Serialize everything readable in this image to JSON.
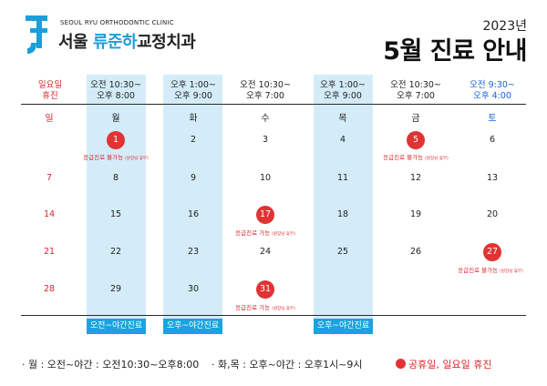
{
  "header": {
    "clinic_en": "SEOUL RYU ORTHODONTIC CLINIC",
    "clinic_ko_pre": "서울 ",
    "clinic_ko_highlight": "류준하",
    "clinic_ko_post": "교정치과",
    "year": "2023년",
    "title": "5월 진료 안내"
  },
  "hours": [
    {
      "line1": "일요일",
      "line2": "휴진"
    },
    {
      "line1": "오전 10:30~",
      "line2": "오후 8:00"
    },
    {
      "line1": "오후 1:00~",
      "line2": "오후 9:00"
    },
    {
      "line1": "오전 10:30~",
      "line2": "오후 7:00"
    },
    {
      "line1": "오후 1:00~",
      "line2": "오후 9:00"
    },
    {
      "line1": "오전 10:30~",
      "line2": "오후 7:00"
    },
    {
      "line1": "오전 9:30~",
      "line2": "오후 4:00"
    }
  ],
  "weekdays": [
    "일",
    "월",
    "화",
    "수",
    "목",
    "금",
    "토"
  ],
  "weeks": [
    [
      "",
      "1",
      "2",
      "3",
      "4",
      "5",
      "6"
    ],
    [
      "7",
      "8",
      "9",
      "10",
      "11",
      "12",
      "13"
    ],
    [
      "14",
      "15",
      "16",
      "17",
      "18",
      "19",
      "20"
    ],
    [
      "21",
      "22",
      "23",
      "24",
      "25",
      "26",
      "27"
    ],
    [
      "28",
      "29",
      "30",
      "31",
      "",
      "",
      ""
    ]
  ],
  "notes": {
    "may1": {
      "text": "응급진료 불가능",
      "sub": "(원장님 휴무)"
    },
    "may5": {
      "text": "응급진료 불가능",
      "sub": "(원장님 휴무)"
    },
    "may17": {
      "text": "응급진료 가능",
      "sub": "(원장님 휴무)"
    },
    "may27": {
      "text": "응급진료 불가능",
      "sub": "(원장님 휴무)"
    },
    "may31": {
      "text": "응급진료 가능",
      "sub": "(원장님 휴무)"
    }
  },
  "tags": {
    "mon": "오전~야간진료",
    "tue": "오후~야간진료",
    "thu": "오후~야간진료"
  },
  "legend": {
    "mon": "· 월 : 오전~야간 : 오전10:30~오후8:00",
    "tue_thu": "· 화,목 : 오후~야간 : 오후1시~9시",
    "holiday": "공휴일, 일요일 휴진"
  },
  "colors": {
    "accent_blue": "#1aa3e0",
    "highlight_column": "#d4ecf8",
    "holiday_red": "#e03434",
    "saturday_blue": "#1564d6"
  }
}
